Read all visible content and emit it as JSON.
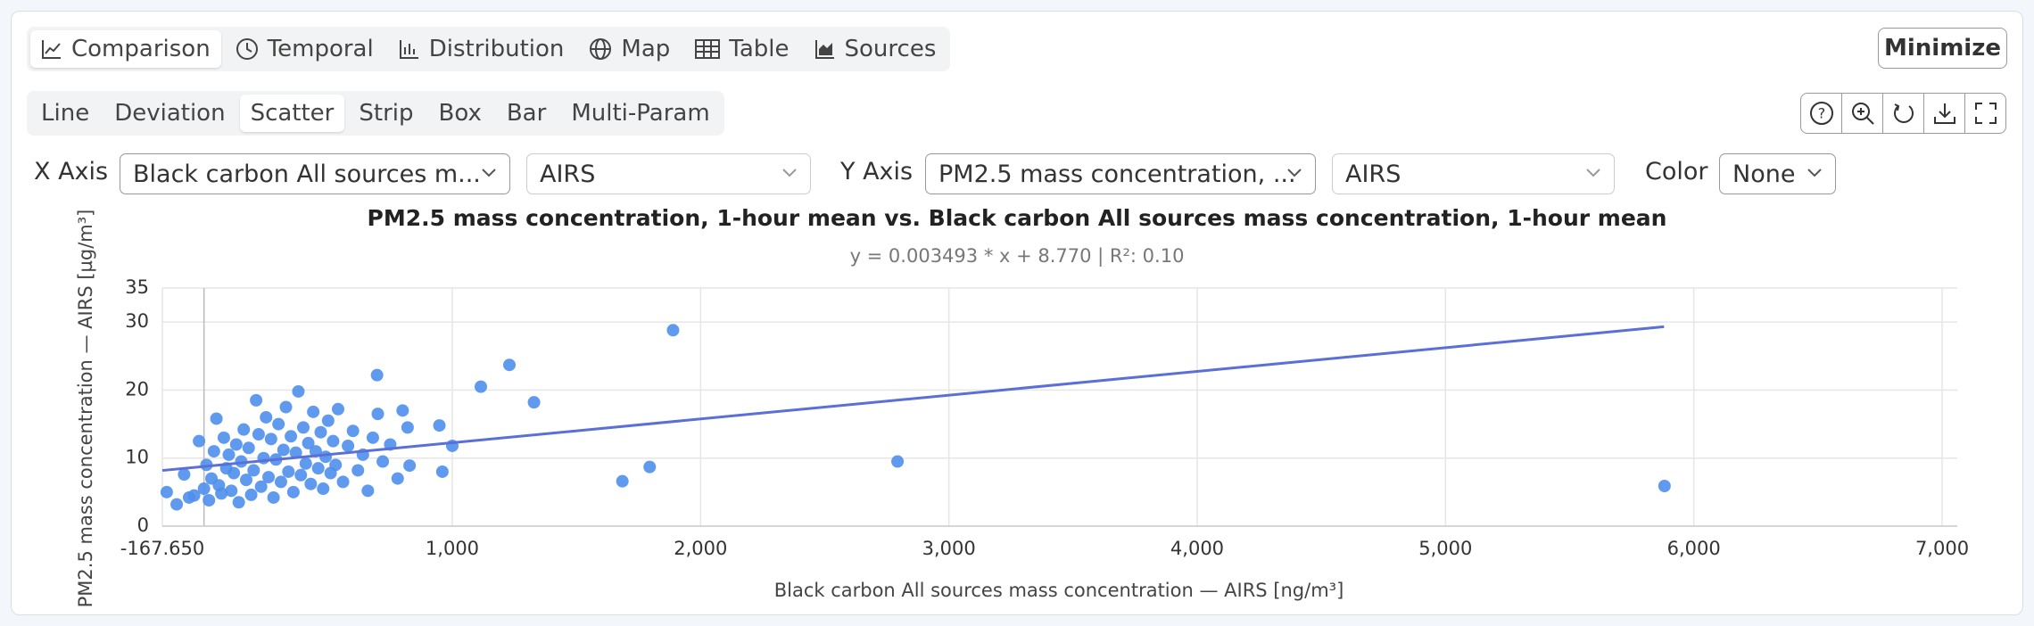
{
  "tabs": [
    "Comparison",
    "Temporal",
    "Distribution",
    "Map",
    "Table",
    "Sources"
  ],
  "minimize": "Minimize",
  "subtabs": [
    "Line",
    "Deviation",
    "Scatter",
    "Strip",
    "Box",
    "Bar",
    "Multi-Param"
  ],
  "controls": {
    "x_axis": {
      "label": "X Axis",
      "parameter": "Black carbon All sources m...",
      "source": "AIRS"
    },
    "y_axis": {
      "label": "Y Axis",
      "parameter": "PM2.5 mass concentration, ...",
      "source": "AIRS"
    },
    "color": {
      "label": "Color",
      "value": "None"
    }
  },
  "chart_data": {
    "type": "scatter",
    "title": "PM2.5 mass concentration, 1-hour mean vs. Black carbon All sources mass concentration, 1-hour mean",
    "subtitle": "y = 0.003493 * x + 8.770 | R²: 0.10",
    "x_label": "Black carbon All sources mass concentration — AIRS [ng/m³]",
    "y_label": "PM2.5 mass concentration — AIRS [µg/m³]",
    "xlim": [
      -167.65,
      7000
    ],
    "ylim": [
      0,
      35
    ],
    "xticks": [
      {
        "value": -167.65,
        "label": "-167.650"
      },
      {
        "value": 1000,
        "label": "1,000"
      },
      {
        "value": 2000,
        "label": "2,000"
      },
      {
        "value": 3000,
        "label": "3,000"
      },
      {
        "value": 4000,
        "label": "4,000"
      },
      {
        "value": 5000,
        "label": "5,000"
      },
      {
        "value": 6000,
        "label": "6,000"
      },
      {
        "value": 7000,
        "label": "7,000"
      }
    ],
    "yticks": [
      0,
      10,
      20,
      30,
      35
    ],
    "grid": true,
    "series": [
      {
        "type": "scatter",
        "color": "#4f8fec",
        "x": [
          -150,
          -110,
          -80,
          -60,
          -40,
          -20,
          0,
          10,
          20,
          30,
          40,
          50,
          60,
          70,
          80,
          90,
          100,
          110,
          120,
          130,
          140,
          150,
          160,
          170,
          180,
          190,
          200,
          210,
          220,
          230,
          240,
          250,
          260,
          270,
          280,
          290,
          300,
          310,
          320,
          330,
          340,
          350,
          360,
          370,
          380,
          390,
          400,
          410,
          420,
          430,
          440,
          450,
          460,
          470,
          480,
          490,
          500,
          510,
          520,
          530,
          540,
          560,
          580,
          600,
          620,
          640,
          660,
          680,
          700,
          720,
          750,
          780,
          800,
          820,
          697,
          828,
          948,
          960,
          1000,
          1115,
          1230,
          1329,
          1685,
          1795,
          1889,
          2793,
          5882
        ],
        "values": [
          5.0,
          3.2,
          7.6,
          4.2,
          4.5,
          12.5,
          5.5,
          9.0,
          3.8,
          7.0,
          11.0,
          15.8,
          6.0,
          4.8,
          13.0,
          8.5,
          10.5,
          5.2,
          7.8,
          12.0,
          3.5,
          9.5,
          14.2,
          6.8,
          11.5,
          4.6,
          8.2,
          18.5,
          13.5,
          5.8,
          10.0,
          16.0,
          7.2,
          12.8,
          4.2,
          9.8,
          15.0,
          6.5,
          11.2,
          17.5,
          8.0,
          13.2,
          5.0,
          10.8,
          19.8,
          7.5,
          14.5,
          9.2,
          12.2,
          6.2,
          16.8,
          11.0,
          8.5,
          13.8,
          5.5,
          10.2,
          15.5,
          7.8,
          12.5,
          9.0,
          17.2,
          6.5,
          11.8,
          14.0,
          8.2,
          10.5,
          5.2,
          13.0,
          16.5,
          9.5,
          12.0,
          7.0,
          17.0,
          14.5,
          22.2,
          8.9,
          14.8,
          8.0,
          11.8,
          20.5,
          23.7,
          18.2,
          6.6,
          8.7,
          28.8,
          9.5,
          5.9
        ]
      },
      {
        "type": "line",
        "color": "#5a6fd8",
        "x": [
          -167.65,
          5880
        ],
        "values": [
          8.184,
          29.31
        ]
      }
    ]
  }
}
